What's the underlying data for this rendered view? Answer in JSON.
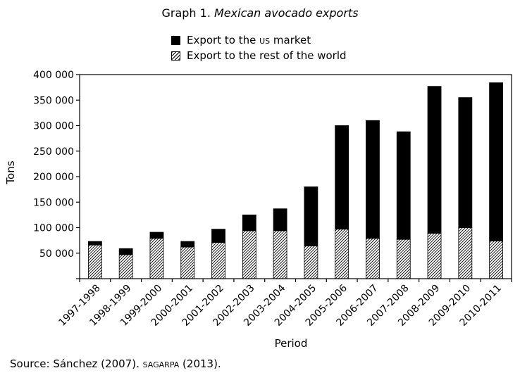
{
  "chart_data": {
    "type": "bar",
    "stacked": true,
    "title_prefix": "Graph 1.",
    "title_italic": "Mexican avocado exports",
    "xlabel": "Period",
    "ylabel": "Tons",
    "ylim": [
      0,
      400000
    ],
    "yticks": [
      0,
      50000,
      100000,
      150000,
      200000,
      250000,
      300000,
      350000,
      400000
    ],
    "ytick_labels": [
      "",
      "50 000",
      "100 000",
      "150 000",
      "200 000",
      "250 000",
      "300 000",
      "350 000",
      "400 000"
    ],
    "categories": [
      "1997-1998",
      "1998-1999",
      "1999-2000",
      "2000-2001",
      "2001-2002",
      "2002-2003",
      "2003-2004",
      "2004-2005",
      "2005-2006",
      "2006-2007",
      "2007-2008",
      "2008-2009",
      "2009-2010",
      "2010-2011"
    ],
    "series": [
      {
        "name": "Export to the rest of the world",
        "pattern": "hatched",
        "values": [
          66000,
          47000,
          79000,
          62000,
          71000,
          94000,
          94000,
          64000,
          97000,
          79000,
          77000,
          89000,
          100000,
          74000
        ]
      },
      {
        "name": "Export to the US market",
        "pattern": "solid",
        "color": "#000000",
        "values": [
          7000,
          12000,
          12000,
          11000,
          26000,
          31000,
          43000,
          116000,
          203000,
          231000,
          211000,
          288000,
          255000,
          310000
        ]
      }
    ],
    "legend": {
      "position": "top",
      "items": [
        {
          "pre": "Export to the ",
          "abbr": "us",
          "post": " market"
        },
        {
          "text": "Export to the rest of the world"
        }
      ]
    },
    "grid": false
  },
  "source": {
    "pre": "Source: Sánchez (2007). ",
    "abbr": "sagarpa",
    "post": " (2013)."
  }
}
